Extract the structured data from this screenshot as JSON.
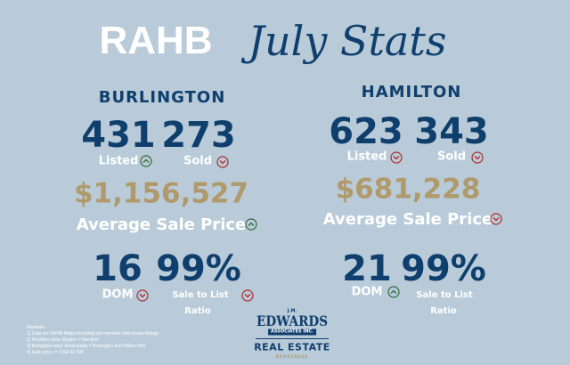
{
  "header": {
    "brand": "RAHB",
    "script_title": "July Stats"
  },
  "burlington": {
    "name": "BURLINGTON",
    "listed": {
      "value": "431",
      "label": "Listed"
    },
    "sold": {
      "value": "273",
      "label": "Sold"
    },
    "avg_price": {
      "value": "$1,156,527",
      "label": "Average Sale Price"
    },
    "dom": {
      "value": "16",
      "label": "DOM"
    },
    "ratio": {
      "value": "99%",
      "label_line1": "Sale to List",
      "label_line2": "Ratio"
    }
  },
  "hamilton": {
    "name": "HAMILTON",
    "listed": {
      "value": "623",
      "label": "Listed"
    },
    "sold": {
      "value": "343",
      "label": "Sold"
    },
    "avg_price": {
      "value": "$681,228",
      "label": "Average Sale Price"
    },
    "dom": {
      "value": "21",
      "label": "DOM"
    },
    "ratio": {
      "value": "99%",
      "label_line1": "Sale to List",
      "label_line2": "Ratio"
    }
  },
  "remarks": {
    "title": "Remarks:",
    "lines": [
      "1) Data are RAHB Mains including non member inter-board listings.",
      "2) Hamilton area:  Region = Hamilton",
      "3) Burlington area:  Municipality = Burlington and Halton Hills",
      "4) Sale price >= CAD 40 000"
    ]
  },
  "logo": {
    "top": "J.M.",
    "name": "EDWARDS",
    "sub": "ASSOCIATES INC.",
    "line": "REAL ESTATE",
    "bottom": "BROKERAGE"
  }
}
